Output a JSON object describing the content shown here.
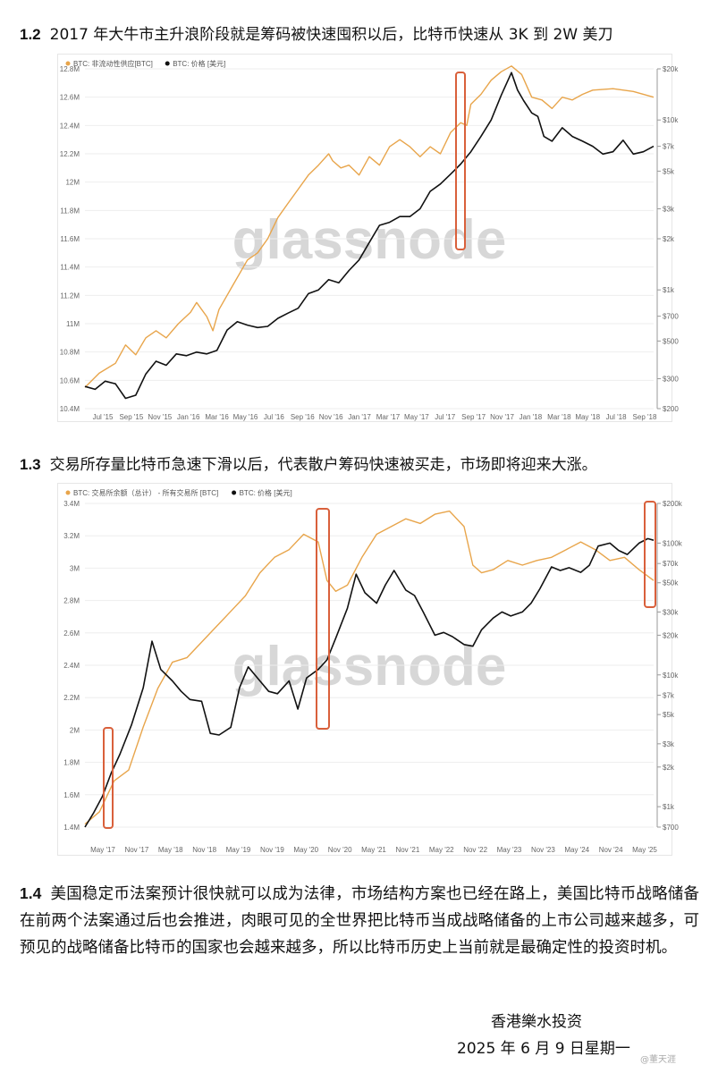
{
  "sections": [
    {
      "num": "1.2",
      "text": "2017 年大牛市主升浪阶段就是筹码被快速囤积以后，比特币快速从 3K 到 2W 美刀"
    },
    {
      "num": "1.3",
      "text": "交易所存量比特币急速下滑以后，代表散户筹码快速被买走，市场即将迎来大涨。"
    },
    {
      "num": "1.4",
      "text": "美国稳定币法案预计很快就可以成为法律，市场结构方案也已经在路上，美国比特币战略储备在前两个法案通过后也会推进，肉眼可见的全世界把比特币当成战略储备的上市公司越来越多，可预见的战略储备比特币的国家也会越来越多，所以比特币历史上当前就是最确定性的投资时机。"
    }
  ],
  "signature": {
    "company": "香港樂水投资",
    "date": "2025 年 6 月 9 日星期一"
  },
  "watermark_text": "glassnode",
  "corner_mark": "@董天涯",
  "colors": {
    "supply": "#e8a54b",
    "price": "#111111",
    "highlight": "#d9603b",
    "grid": "#eeeeee"
  },
  "chart_data": [
    {
      "type": "line",
      "legend": [
        "BTC: 非流动性供应[BTC]",
        "BTC: 价格 [美元]"
      ],
      "xticks": [
        "Jul '15",
        "Sep '15",
        "Nov '15",
        "Jan '16",
        "Mar '16",
        "May '16",
        "Jul '16",
        "Sep '16",
        "Nov '16",
        "Jan '17",
        "Mar '17",
        "May '17",
        "Jul '17",
        "Sep '17",
        "Nov '17",
        "Jan '18",
        "Mar '18",
        "May '18",
        "Jul '18",
        "Sep '18"
      ],
      "yticks_left": [
        "12.8M",
        "12.6M",
        "12.4M",
        "12.2M",
        "12M",
        "11.8M",
        "11.6M",
        "11.4M",
        "11.2M",
        "11M",
        "10.8M",
        "10.6M",
        "10.4M"
      ],
      "yticks_right": [
        "$20k",
        "$10k",
        "$7k",
        "$5k",
        "$3k",
        "$2k",
        "$1k",
        "$700",
        "$500",
        "$300",
        "$200"
      ],
      "ylim_left": [
        10.4,
        12.8
      ],
      "series": [
        {
          "name": "BTC: 非流动性供应[BTC]",
          "axis": "left",
          "points": [
            [
              0,
              10.55
            ],
            [
              0.7,
              10.65
            ],
            [
              1.5,
              10.72
            ],
            [
              2,
              10.85
            ],
            [
              2.5,
              10.78
            ],
            [
              3,
              10.9
            ],
            [
              3.5,
              10.95
            ],
            [
              4,
              10.9
            ],
            [
              4.6,
              11.0
            ],
            [
              5.2,
              11.08
            ],
            [
              5.5,
              11.15
            ],
            [
              6,
              11.05
            ],
            [
              6.3,
              10.95
            ],
            [
              6.6,
              11.1
            ],
            [
              7.2,
              11.25
            ],
            [
              8,
              11.45
            ],
            [
              8.5,
              11.5
            ],
            [
              9,
              11.6
            ],
            [
              9.5,
              11.75
            ],
            [
              10,
              11.85
            ],
            [
              10.5,
              11.95
            ],
            [
              11,
              12.05
            ],
            [
              11.5,
              12.12
            ],
            [
              12,
              12.2
            ],
            [
              12.2,
              12.15
            ],
            [
              12.6,
              12.1
            ],
            [
              13,
              12.12
            ],
            [
              13.5,
              12.05
            ],
            [
              14,
              12.18
            ],
            [
              14.5,
              12.12
            ],
            [
              15,
              12.25
            ],
            [
              15.5,
              12.3
            ],
            [
              16,
              12.25
            ],
            [
              16.5,
              12.18
            ],
            [
              17,
              12.25
            ],
            [
              17.5,
              12.2
            ],
            [
              18,
              12.35
            ],
            [
              18.5,
              12.42
            ],
            [
              18.8,
              12.4
            ],
            [
              19,
              12.55
            ],
            [
              19.5,
              12.62
            ],
            [
              20,
              12.72
            ],
            [
              20.5,
              12.78
            ],
            [
              21,
              12.82
            ],
            [
              21.5,
              12.76
            ],
            [
              22,
              12.6
            ],
            [
              22.5,
              12.58
            ],
            [
              23,
              12.52
            ],
            [
              23.5,
              12.6
            ],
            [
              24,
              12.58
            ],
            [
              24.5,
              12.62
            ],
            [
              25,
              12.65
            ],
            [
              26,
              12.66
            ],
            [
              27,
              12.64
            ],
            [
              28,
              12.6
            ]
          ]
        },
        {
          "name": "BTC: 价格 [美元]",
          "axis": "right",
          "points": [
            [
              0,
              270
            ],
            [
              0.5,
              260
            ],
            [
              1,
              290
            ],
            [
              1.5,
              280
            ],
            [
              2,
              230
            ],
            [
              2.5,
              240
            ],
            [
              3,
              320
            ],
            [
              3.5,
              380
            ],
            [
              4,
              360
            ],
            [
              4.5,
              420
            ],
            [
              5,
              410
            ],
            [
              5.5,
              430
            ],
            [
              6,
              420
            ],
            [
              6.5,
              440
            ],
            [
              7,
              580
            ],
            [
              7.5,
              650
            ],
            [
              8,
              620
            ],
            [
              8.5,
              600
            ],
            [
              9,
              610
            ],
            [
              9.5,
              680
            ],
            [
              10,
              730
            ],
            [
              10.5,
              780
            ],
            [
              11,
              950
            ],
            [
              11.5,
              1000
            ],
            [
              12,
              1150
            ],
            [
              12.5,
              1100
            ],
            [
              13,
              1300
            ],
            [
              13.5,
              1500
            ],
            [
              14,
              1900
            ],
            [
              14.5,
              2400
            ],
            [
              15,
              2500
            ],
            [
              15.5,
              2700
            ],
            [
              16,
              2700
            ],
            [
              16.5,
              3000
            ],
            [
              17,
              3800
            ],
            [
              17.5,
              4200
            ],
            [
              18,
              4800
            ],
            [
              18.5,
              5500
            ],
            [
              19,
              6500
            ],
            [
              19.5,
              8000
            ],
            [
              20,
              10000
            ],
            [
              20.5,
              14000
            ],
            [
              21,
              19000
            ],
            [
              21.3,
              15000
            ],
            [
              21.6,
              13000
            ],
            [
              22,
              11000
            ],
            [
              22.3,
              10500
            ],
            [
              22.6,
              8000
            ],
            [
              23,
              7500
            ],
            [
              23.5,
              9000
            ],
            [
              24,
              8000
            ],
            [
              24.5,
              7500
            ],
            [
              25,
              7000
            ],
            [
              25.5,
              6300
            ],
            [
              26,
              6500
            ],
            [
              26.5,
              7600
            ],
            [
              27,
              6300
            ],
            [
              27.5,
              6500
            ],
            [
              28,
              7000
            ]
          ]
        }
      ]
    },
    {
      "type": "line",
      "legend": [
        "BTC: 交易所余额（总计） - 所有交易所 [BTC]",
        "BTC: 价格 [美元]"
      ],
      "xticks": [
        "May '17",
        "Nov '17",
        "May '18",
        "Nov '18",
        "May '19",
        "Nov '19",
        "May '20",
        "Nov '20",
        "May '21",
        "Nov '21",
        "May '22",
        "Nov '22",
        "May '23",
        "Nov '23",
        "May '24",
        "Nov '24",
        "May '25"
      ],
      "yticks_left": [
        "3.4M",
        "3.2M",
        "3M",
        "2.8M",
        "2.6M",
        "2.4M",
        "2.2M",
        "2M",
        "1.8M",
        "1.6M",
        "1.4M"
      ],
      "yticks_right": [
        "$200k",
        "$100k",
        "$70k",
        "$50k",
        "$30k",
        "$20k",
        "$10k",
        "$7k",
        "$5k",
        "$3k",
        "$2k",
        "$1k",
        "$700"
      ],
      "ylim_left": [
        1.35,
        3.45
      ],
      "series": [
        {
          "name": "BTC: 交易所余额（总计） - 所有交易所 [BTC]",
          "axis": "left",
          "points": [
            [
              0,
              1.37
            ],
            [
              0.5,
              1.45
            ],
            [
              1,
              1.65
            ],
            [
              1.5,
              1.72
            ],
            [
              2,
              2.0
            ],
            [
              2.5,
              2.25
            ],
            [
              3,
              2.42
            ],
            [
              3.5,
              2.45
            ],
            [
              4,
              2.55
            ],
            [
              4.5,
              2.65
            ],
            [
              5,
              2.75
            ],
            [
              5.5,
              2.85
            ],
            [
              6,
              3.0
            ],
            [
              6.5,
              3.1
            ],
            [
              7,
              3.15
            ],
            [
              7.5,
              3.25
            ],
            [
              8,
              3.2
            ],
            [
              8.3,
              2.95
            ],
            [
              8.6,
              2.88
            ],
            [
              9,
              2.92
            ],
            [
              9.5,
              3.1
            ],
            [
              10,
              3.25
            ],
            [
              10.5,
              3.3
            ],
            [
              11,
              3.35
            ],
            [
              11.5,
              3.32
            ],
            [
              12,
              3.38
            ],
            [
              12.5,
              3.4
            ],
            [
              13,
              3.3
            ],
            [
              13.3,
              3.05
            ],
            [
              13.6,
              3.0
            ],
            [
              14,
              3.02
            ],
            [
              14.5,
              3.08
            ],
            [
              15,
              3.05
            ],
            [
              15.5,
              3.08
            ],
            [
              16,
              3.1
            ],
            [
              16.5,
              3.15
            ],
            [
              17,
              3.2
            ],
            [
              17.5,
              3.15
            ],
            [
              18,
              3.08
            ],
            [
              18.5,
              3.1
            ],
            [
              19,
              3.02
            ],
            [
              19.5,
              2.95
            ]
          ]
        },
        {
          "name": "BTC: 价格 [美元]",
          "axis": "right",
          "points": [
            [
              0,
              700
            ],
            [
              0.3,
              900
            ],
            [
              0.6,
              1200
            ],
            [
              0.9,
              1800
            ],
            [
              1.2,
              2500
            ],
            [
              1.6,
              4200
            ],
            [
              2,
              8000
            ],
            [
              2.3,
              18000
            ],
            [
              2.6,
              11000
            ],
            [
              3,
              9000
            ],
            [
              3.3,
              7500
            ],
            [
              3.6,
              6500
            ],
            [
              4,
              6300
            ],
            [
              4.3,
              3600
            ],
            [
              4.6,
              3500
            ],
            [
              5,
              4000
            ],
            [
              5.3,
              8000
            ],
            [
              5.6,
              11500
            ],
            [
              6,
              9000
            ],
            [
              6.3,
              7500
            ],
            [
              6.6,
              7200
            ],
            [
              7,
              9000
            ],
            [
              7.3,
              5500
            ],
            [
              7.6,
              9500
            ],
            [
              8,
              11000
            ],
            [
              8.3,
              13000
            ],
            [
              8.6,
              19000
            ],
            [
              9,
              32000
            ],
            [
              9.3,
              58000
            ],
            [
              9.6,
              42000
            ],
            [
              10,
              35000
            ],
            [
              10.3,
              48000
            ],
            [
              10.6,
              62000
            ],
            [
              11,
              44000
            ],
            [
              11.3,
              40000
            ],
            [
              11.6,
              30000
            ],
            [
              12,
              20000
            ],
            [
              12.3,
              21000
            ],
            [
              12.6,
              19500
            ],
            [
              13,
              17000
            ],
            [
              13.3,
              16500
            ],
            [
              13.6,
              22000
            ],
            [
              14,
              27000
            ],
            [
              14.3,
              30000
            ],
            [
              14.6,
              28000
            ],
            [
              15,
              30000
            ],
            [
              15.3,
              35000
            ],
            [
              15.6,
              45000
            ],
            [
              16,
              66000
            ],
            [
              16.3,
              62000
            ],
            [
              16.6,
              65000
            ],
            [
              17,
              60000
            ],
            [
              17.3,
              68000
            ],
            [
              17.6,
              95000
            ],
            [
              18,
              100000
            ],
            [
              18.3,
              88000
            ],
            [
              18.6,
              82000
            ],
            [
              19,
              100000
            ],
            [
              19.3,
              108000
            ],
            [
              19.5,
              105000
            ]
          ]
        }
      ]
    }
  ]
}
